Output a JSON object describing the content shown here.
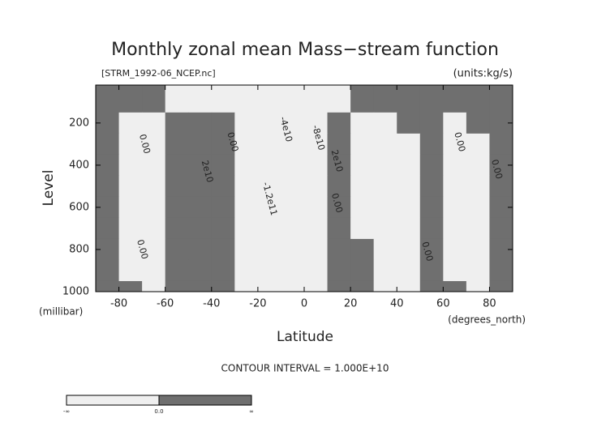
{
  "chart_data": {
    "type": "contour",
    "title": "Monthly zonal mean Mass−stream function",
    "subtitle_left": "[STRM_1992-06_NCEP.nc]",
    "subtitle_right": "(units:kg/s)",
    "xlabel": "Latitude",
    "ylabel": "Level",
    "xunits": "(degrees_north)",
    "yunits": "(millibar)",
    "footer": "CONTOUR INTERVAL = 1.000E+10",
    "xlim": [
      -90,
      90
    ],
    "ylim": [
      1000,
      20
    ],
    "xticks": [
      -80,
      -60,
      -40,
      -20,
      0,
      20,
      40,
      60,
      80
    ],
    "yticks": [
      200,
      400,
      600,
      800,
      1000
    ],
    "x": [
      -85,
      -75,
      -65,
      -55,
      -45,
      -35,
      -25,
      -15,
      -5,
      5,
      15,
      25,
      35,
      45,
      55,
      65,
      75,
      85
    ],
    "y": [
      100,
      200,
      300,
      400,
      500,
      600,
      700,
      800,
      900,
      1000
    ],
    "z": [
      [
        2000000000.0,
        3000000000.0,
        2000000000.0,
        -1000000000.0,
        -2000000000.0,
        -3000000000.0,
        -5000000000.0,
        -8000000000.0,
        -8000000000.0,
        -5000000000.0,
        -2000000000.0,
        2000000000.0,
        2000000000.0,
        3000000000.0,
        3000000000.0,
        2000000000.0,
        2000000000.0,
        1000000000.0
      ],
      [
        3000000000.0,
        -5000000000.0,
        -4000000000.0,
        5000000000.0,
        8000000000.0,
        3000000000.0,
        -20000000000.0,
        -40000000000.0,
        -50000000000.0,
        -40000000000.0,
        5000000000.0,
        -2000000000.0,
        -5000000000.0,
        3000000000.0,
        4000000000.0,
        -3000000000.0,
        2000000000.0,
        1000000000.0
      ],
      [
        3000000000.0,
        -8000000000.0,
        -6000000000.0,
        10000000000.0,
        15000000000.0,
        8000000000.0,
        -30000000000.0,
        -60000000000.0,
        -80000000000.0,
        -60000000000.0,
        15000000000.0,
        -3000000000.0,
        -8000000000.0,
        -5000000000.0,
        5000000000.0,
        -4000000000.0,
        -2000000000.0,
        2000000000.0
      ],
      [
        3000000000.0,
        -10000000000.0,
        -8000000000.0,
        15000000000.0,
        25000000000.0,
        10000000000.0,
        -40000000000.0,
        -90000000000.0,
        -110000000000.0,
        -80000000000.0,
        20000000000.0,
        -3000000000.0,
        -10000000000.0,
        -6000000000.0,
        5000000000.0,
        -5000000000.0,
        -3000000000.0,
        3000000000.0
      ],
      [
        3000000000.0,
        -10000000000.0,
        -8000000000.0,
        20000000000.0,
        30000000000.0,
        10000000000.0,
        -50000000000.0,
        -100000000000.0,
        -120000000000.0,
        -90000000000.0,
        20000000000.0,
        -2000000000.0,
        -10000000000.0,
        -6000000000.0,
        5000000000.0,
        -5000000000.0,
        -3000000000.0,
        3000000000.0
      ],
      [
        3000000000.0,
        -9000000000.0,
        -7000000000.0,
        20000000000.0,
        35000000000.0,
        10000000000.0,
        -50000000000.0,
        -100000000000.0,
        -120000000000.0,
        -90000000000.0,
        15000000000.0,
        -2000000000.0,
        -10000000000.0,
        -6000000000.0,
        4000000000.0,
        -4000000000.0,
        -2000000000.0,
        3000000000.0
      ],
      [
        2000000000.0,
        -8000000000.0,
        -6000000000.0,
        20000000000.0,
        35000000000.0,
        10000000000.0,
        -40000000000.0,
        -90000000000.0,
        -110000000000.0,
        -80000000000.0,
        12000000000.0,
        -1000000000.0,
        -8000000000.0,
        -5000000000.0,
        3000000000.0,
        -3000000000.0,
        -2000000000.0,
        2000000000.0
      ],
      [
        2000000000.0,
        -6000000000.0,
        -4000000000.0,
        15000000000.0,
        30000000000.0,
        8000000000.0,
        -30000000000.0,
        -70000000000.0,
        -80000000000.0,
        -60000000000.0,
        10000000000.0,
        1000000000.0,
        -6000000000.0,
        -4000000000.0,
        2000000000.0,
        -2000000000.0,
        -1000000000.0,
        2000000000.0
      ],
      [
        1000000000.0,
        -3000000000.0,
        -2000000000.0,
        10000000000.0,
        20000000000.0,
        5000000000.0,
        -20000000000.0,
        -40000000000.0,
        -50000000000.0,
        -30000000000.0,
        5000000000.0,
        1000000000.0,
        -3000000000.0,
        -2000000000.0,
        1000000000.0,
        -1000000000.0,
        -1000000000.0,
        1000000000.0
      ],
      [
        500000000.0,
        500000000.0,
        -500000000.0,
        3000000000.0,
        5000000000.0,
        1000000000.0,
        -5000000000.0,
        -10000000000.0,
        -10000000000.0,
        -8000000000.0,
        1000000000.0,
        500000000.0,
        -1000000000.0,
        -1000000000.0,
        500000000.0,
        500000000.0,
        -500000000.0,
        500000000.0
      ]
    ],
    "colors": {
      "negative": "#efefef",
      "positive": "#6f6f6f"
    },
    "colorbar_labels": [
      "-∞",
      "0.0",
      "∞"
    ],
    "annotations": [
      {
        "text": "0.00",
        "x": -69,
        "y": 300
      },
      {
        "text": "2e10",
        "x": -42,
        "y": 430
      },
      {
        "text": "0.00",
        "x": -31,
        "y": 290
      },
      {
        "text": "-1.2e11",
        "x": -15,
        "y": 560
      },
      {
        "text": "-4e10",
        "x": -8,
        "y": 230
      },
      {
        "text": "-8e10",
        "x": 6,
        "y": 270
      },
      {
        "text": "2e10",
        "x": 14,
        "y": 380
      },
      {
        "text": "0.00",
        "x": 14,
        "y": 580
      },
      {
        "text": "0.00",
        "x": -70,
        "y": 800
      },
      {
        "text": "0.00",
        "x": 53,
        "y": 810
      },
      {
        "text": "0.00",
        "x": 67,
        "y": 290
      },
      {
        "text": "0.00",
        "x": 83,
        "y": 420
      }
    ]
  }
}
